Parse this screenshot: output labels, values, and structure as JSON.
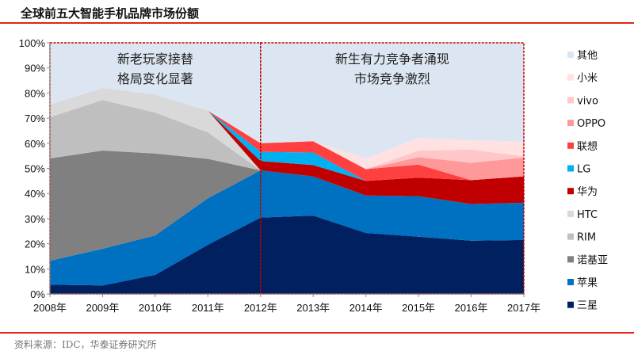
{
  "title": "全球前五大智能手机品牌市场份额",
  "source": "资料来源：IDC，华泰证券研究所",
  "chart_data": {
    "type": "area",
    "stacked": true,
    "title": "",
    "xlabel": "",
    "ylabel": "",
    "ylim": [
      0,
      100
    ],
    "y_unit": "%",
    "yticks": [
      "0%",
      "10%",
      "20%",
      "30%",
      "40%",
      "50%",
      "60%",
      "70%",
      "80%",
      "90%",
      "100%"
    ],
    "categories": [
      "2008年",
      "2009年",
      "2010年",
      "2011年",
      "2012年",
      "2013年",
      "2014年",
      "2015年",
      "2016年",
      "2017年"
    ],
    "legend_position": "right",
    "annotations": [
      {
        "lines": [
          "新老玩家接替",
          "格局变化显著"
        ],
        "period": "2008年-2012年"
      },
      {
        "lines": [
          "新生有力竞争者涌现",
          "市场竞争激烈"
        ],
        "period": "2012年-2017年"
      }
    ],
    "series": [
      {
        "name": "三星",
        "color": "#002060",
        "values": [
          3.7,
          3.4,
          7.6,
          19.6,
          30.4,
          31.2,
          24.3,
          22.8,
          21.2,
          21.5
        ]
      },
      {
        "name": "苹果",
        "color": "#0070C0",
        "values": [
          9.5,
          14.6,
          15.7,
          18.5,
          18.8,
          15.6,
          14.9,
          16.1,
          14.6,
          14.8
        ]
      },
      {
        "name": "诺基亚",
        "color": "#808080",
        "values": [
          40.8,
          39.1,
          32.6,
          15.7,
          0,
          0,
          0,
          0,
          0,
          0
        ]
      },
      {
        "name": "RIM",
        "color": "#BFBFBF",
        "values": [
          16.4,
          20.1,
          16.3,
          10.5,
          0,
          0,
          0,
          0,
          0,
          0
        ]
      },
      {
        "name": "HTC",
        "color": "#D9D9D9",
        "values": [
          5.0,
          4.8,
          7.2,
          8.7,
          0,
          0,
          0,
          0,
          0,
          0
        ]
      },
      {
        "name": "华为",
        "color": "#C00000",
        "values": [
          0,
          0,
          0,
          0,
          3.7,
          4.5,
          5.8,
          7.4,
          9.5,
          10.5
        ]
      },
      {
        "name": "LG",
        "color": "#00B0F0",
        "values": [
          0,
          0,
          0,
          0,
          3.7,
          5.0,
          0,
          0,
          0,
          0
        ]
      },
      {
        "name": "联想",
        "color": "#FF4040",
        "values": [
          0,
          0,
          0,
          0,
          3.4,
          4.5,
          4.7,
          5.2,
          0,
          0
        ]
      },
      {
        "name": "OPPO",
        "color": "#FF9999",
        "values": [
          0,
          0,
          0,
          0,
          0,
          0,
          0,
          3.0,
          6.9,
          7.5
        ]
      },
      {
        "name": "vivo",
        "color": "#FFC7C7",
        "values": [
          0,
          0,
          0,
          0,
          0,
          0,
          0,
          2.6,
          5.3,
          0.5
        ]
      },
      {
        "name": "小米",
        "color": "#FFE1E1",
        "values": [
          0,
          0,
          0,
          0,
          0,
          0,
          4.3,
          5.0,
          3.7,
          5.8
        ]
      },
      {
        "name": "其他",
        "color": "#DCE6F2",
        "values": "remainder"
      }
    ]
  },
  "colors": {
    "rule": "#e0251b",
    "annotation_frame": "#c00000"
  }
}
